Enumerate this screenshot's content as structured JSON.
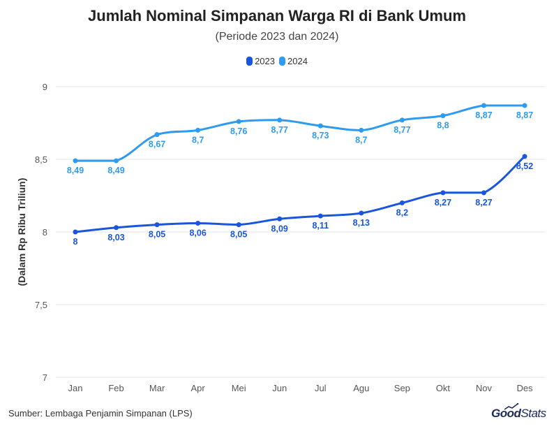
{
  "chart_data": {
    "type": "line",
    "title": "Jumlah Nominal Simpanan Warga RI di Bank Umum",
    "subtitle": "(Periode 2023 dan 2024)",
    "ylabel": "(Dalam Rp Ribu Triliun)",
    "xlabel": "",
    "ylim": [
      7,
      9
    ],
    "yticks": [
      "7",
      "7,5",
      "8",
      "8,5",
      "9"
    ],
    "ytick_values": [
      7,
      7.5,
      8,
      8.5,
      9
    ],
    "categories": [
      "Jan",
      "Feb",
      "Mar",
      "Apr",
      "Mei",
      "Jun",
      "Jul",
      "Agu",
      "Sep",
      "Okt",
      "Nov",
      "Des"
    ],
    "series": [
      {
        "name": "2023",
        "color": "#1a56db",
        "values": [
          8,
          8.03,
          8.05,
          8.06,
          8.05,
          8.09,
          8.11,
          8.13,
          8.2,
          8.27,
          8.27,
          8.52
        ],
        "labels": [
          "8",
          "8,03",
          "8,05",
          "8,06",
          "8,05",
          "8,09",
          "8,11",
          "8,13",
          "8,2",
          "8,27",
          "8,27",
          "8,52"
        ]
      },
      {
        "name": "2024",
        "color": "#2e9bf0",
        "values": [
          8.49,
          8.49,
          8.67,
          8.7,
          8.76,
          8.77,
          8.73,
          8.7,
          8.77,
          8.8,
          8.87,
          8.87
        ],
        "labels": [
          "8,49",
          "8,49",
          "8,67",
          "8,7",
          "8,76",
          "8,77",
          "8,73",
          "8,7",
          "8,77",
          "8,8",
          "8,87",
          "8,87"
        ]
      }
    ],
    "legend": "top-center",
    "grid": true
  },
  "footer": {
    "source": "Sumber: Lembaga Penjamin Simpanan (LPS)",
    "brand_good": "Good",
    "brand_stats": "Stats"
  }
}
